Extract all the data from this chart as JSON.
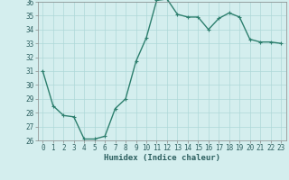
{
  "x": [
    0,
    1,
    2,
    3,
    4,
    5,
    6,
    7,
    8,
    9,
    10,
    11,
    12,
    13,
    14,
    15,
    16,
    17,
    18,
    19,
    20,
    21,
    22,
    23
  ],
  "y": [
    31,
    28.5,
    27.8,
    27.7,
    26.1,
    26.1,
    26.3,
    28.3,
    29.0,
    31.7,
    33.4,
    36.1,
    36.2,
    35.1,
    34.9,
    34.9,
    34.0,
    34.8,
    35.2,
    34.9,
    33.3,
    33.1,
    33.1,
    33.0
  ],
  "line_color": "#2d7f6e",
  "marker": "+",
  "marker_size": 3,
  "bg_color": "#d4eeee",
  "grid_color": "#aed8d8",
  "xlabel": "Humidex (Indice chaleur)",
  "xlim": [
    -0.5,
    23.5
  ],
  "ylim": [
    26,
    36
  ],
  "yticks": [
    26,
    27,
    28,
    29,
    30,
    31,
    32,
    33,
    34,
    35,
    36
  ],
  "xticks": [
    0,
    1,
    2,
    3,
    4,
    5,
    6,
    7,
    8,
    9,
    10,
    11,
    12,
    13,
    14,
    15,
    16,
    17,
    18,
    19,
    20,
    21,
    22,
    23
  ],
  "tick_fontsize": 5.5,
  "label_fontsize": 6.5,
  "line_width": 1.0
}
